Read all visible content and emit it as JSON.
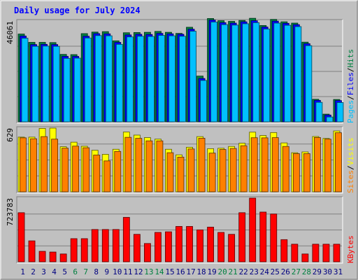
{
  "chart_data": {
    "type": "bar",
    "title": "Daily usage for July 2024",
    "categories": [
      "1",
      "2",
      "3",
      "4",
      "5",
      "6",
      "7",
      "8",
      "9",
      "10",
      "11",
      "12",
      "13",
      "14",
      "15",
      "16",
      "17",
      "18",
      "19",
      "20",
      "21",
      "22",
      "23",
      "24",
      "25",
      "26",
      "27",
      "28",
      "29",
      "30",
      "31"
    ],
    "weekend_days": [
      "6",
      "7",
      "13",
      "14",
      "20",
      "21",
      "27",
      "28"
    ],
    "panels": [
      {
        "id": "hits-files-pages",
        "ymax_label": "46061",
        "ymax": 46061,
        "series": [
          {
            "name": "Hits",
            "color": "#008040",
            "values": [
              40100,
              36300,
              36300,
              36200,
              30800,
              30700,
              40300,
              41000,
              41200,
              37000,
              40700,
              40800,
              40900,
              41300,
              40900,
              40400,
              43200,
              20900,
              47200,
              46200,
              45900,
              46300,
              47300,
              44000,
              46800,
              45700,
              45100,
              36400,
              10300,
              3500,
              10200
            ]
          },
          {
            "name": "Files",
            "color": "#0000ff",
            "values": [
              39200,
              35300,
              35400,
              35300,
              29900,
              29900,
              39100,
              40300,
              40200,
              36300,
              39700,
              40000,
              39900,
              40400,
              40200,
              40000,
              42300,
              19800,
              46500,
              45300,
              45100,
              45700,
              46200,
              43300,
              46000,
              45000,
              44400,
              35700,
              9800,
              3100,
              9700
            ]
          },
          {
            "name": "Pages",
            "color": "#00c0ff",
            "values": [
              38200,
              34500,
              34600,
              34500,
              29000,
              29100,
              38300,
              39400,
              39300,
              35400,
              38800,
              39100,
              39000,
              39500,
              39300,
              39100,
              41400,
              18900,
              45600,
              44400,
              44200,
              44800,
              45300,
              42400,
              45100,
              44100,
              43500,
              34800,
              8900,
              2200,
              8800
            ]
          }
        ]
      },
      {
        "id": "visits-sites",
        "ymax_label": "629",
        "ymax": 629,
        "series": [
          {
            "name": "Visits",
            "color": "#ffff00",
            "values": [
              540,
              540,
              626,
              629,
              445,
              490,
              450,
              410,
              370,
              420,
              590,
              560,
              535,
              520,
              420,
              365,
              440,
              545,
              426,
              430,
              448,
              480,
              589,
              556,
              585,
              483,
              386,
              394,
              546,
              527,
              601
            ]
          },
          {
            "name": "Sites",
            "color": "#ff8000",
            "values": [
              533,
              524,
              545,
              520,
              431,
              451,
              435,
              363,
              305,
              399,
              538,
              528,
              503,
              503,
              386,
              343,
              423,
              529,
              382,
              418,
              428,
              455,
              534,
              533,
              535,
              448,
              377,
              377,
              536,
              520,
              583
            ]
          }
        ]
      },
      {
        "id": "kbytes",
        "ymax_label": "723783",
        "ymax": 723783,
        "series": [
          {
            "name": "KBytes",
            "color": "#ff0000",
            "values": [
              558000,
              238000,
              119000,
              111000,
              89000,
              263000,
              263000,
              367000,
              367000,
              367000,
              505000,
              312000,
              208000,
              334000,
              341000,
              402000,
              402000,
              363000,
              394000,
              334000,
              312000,
              558000,
              723783,
              565000,
              543000,
              252000,
              200000,
              89000,
              200000,
              200000,
              200000
            ]
          }
        ]
      }
    ],
    "side_labels": {
      "panel1": [
        "Pages",
        "/",
        "Files",
        "/",
        "Hits"
      ],
      "panel2": [
        "Sites",
        "/",
        "Visits"
      ],
      "panel3": [
        "KBytes"
      ]
    },
    "colors": {
      "background": "#c0c0c0",
      "title": "#0000ff",
      "weekday_label": "#000080",
      "weekend_label": "#008040",
      "slash": "#000000"
    }
  }
}
